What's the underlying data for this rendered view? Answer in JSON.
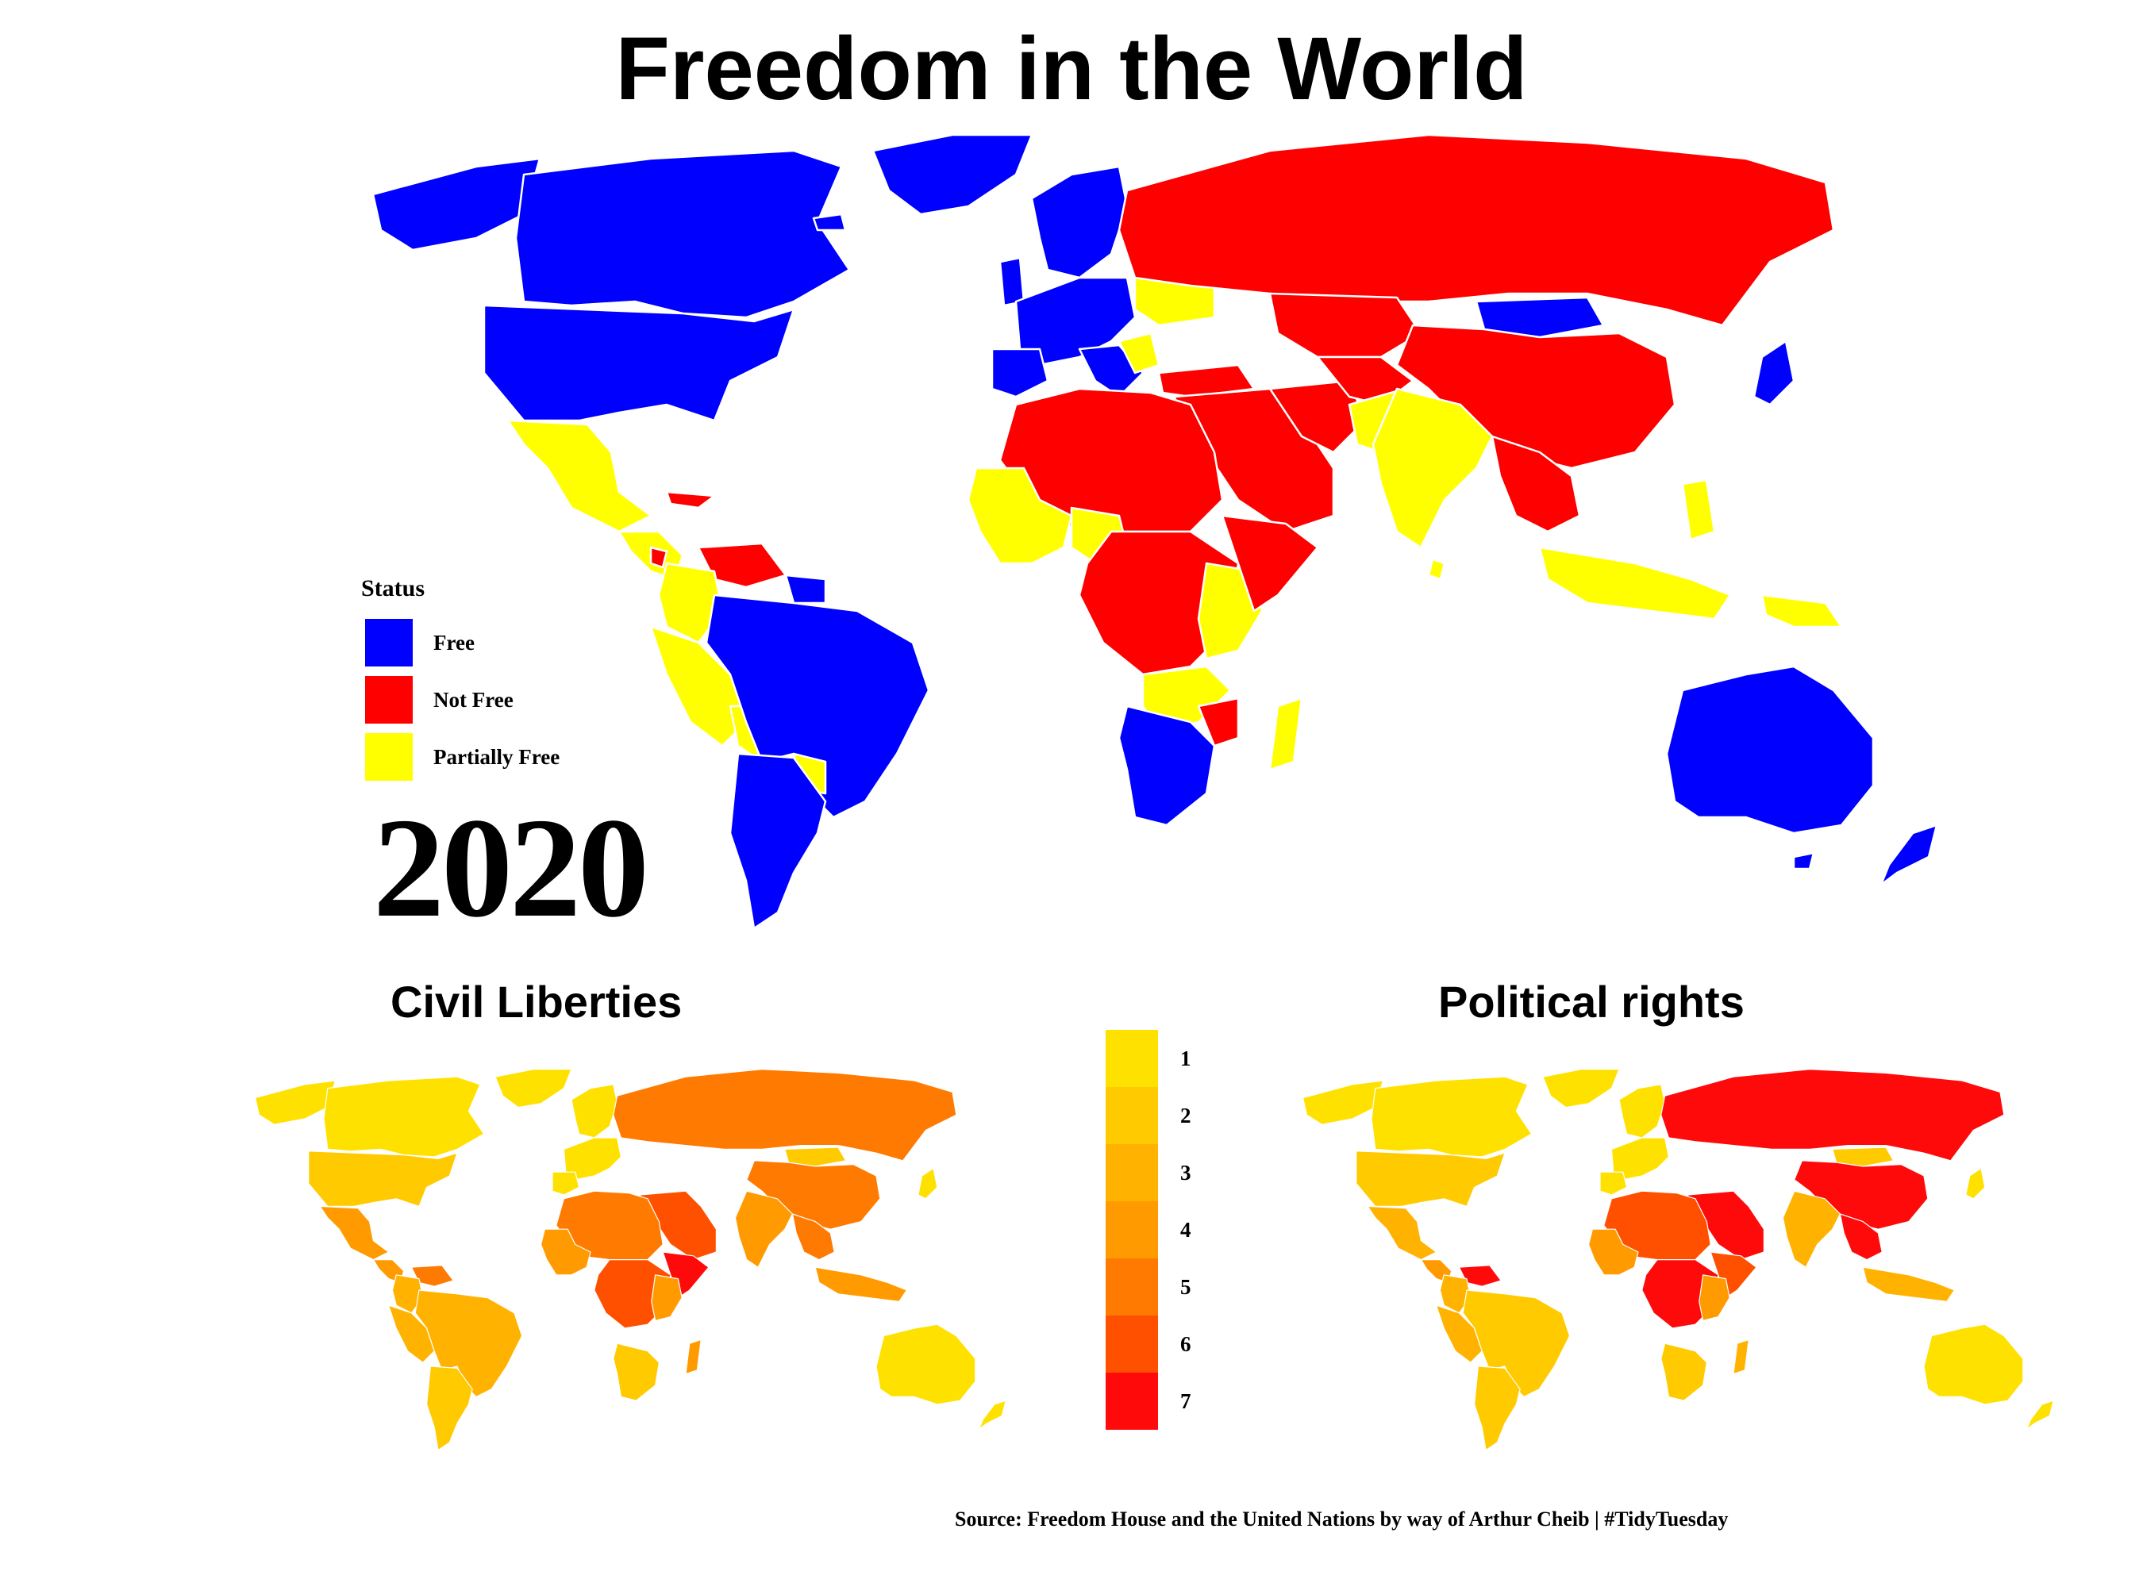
{
  "title": "Freedom in the World",
  "year": "2020",
  "status_legend": {
    "title": "Status",
    "items": [
      {
        "label": "Free",
        "color": "#0000FF"
      },
      {
        "label": "Not Free",
        "color": "#FF0000"
      },
      {
        "label": "Partially Free",
        "color": "#FFFF00"
      }
    ]
  },
  "civil_liberties": {
    "title": "Civil Liberties"
  },
  "political_rights": {
    "title": "Political rights"
  },
  "scale_legend": {
    "items": [
      {
        "label": "1",
        "color": "#FFE100"
      },
      {
        "label": "2",
        "color": "#FFCA00"
      },
      {
        "label": "3",
        "color": "#FFB300"
      },
      {
        "label": "4",
        "color": "#FF9B00"
      },
      {
        "label": "5",
        "color": "#FF7A00"
      },
      {
        "label": "6",
        "color": "#FF5000"
      },
      {
        "label": "7",
        "color": "#FF0A0A"
      }
    ]
  },
  "source": "Source: Freedom House and the United Nations by way of Arthur Cheib | #TidyTuesday"
}
